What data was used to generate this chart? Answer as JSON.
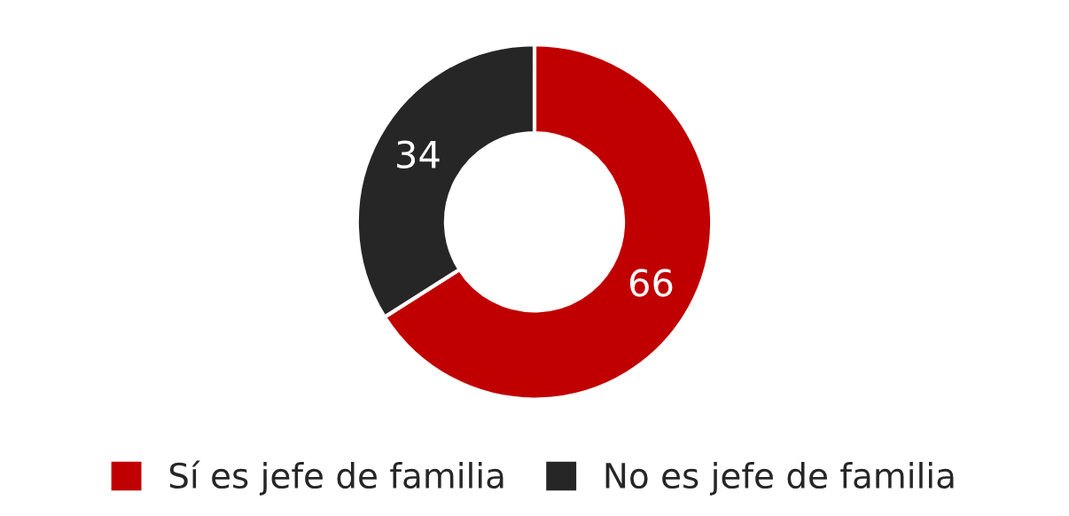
{
  "chart_data": {
    "type": "donut",
    "categories": [
      "Sí es jefe de familia",
      "No es jefe de familia"
    ],
    "values": [
      66,
      34
    ],
    "colors": [
      "#c00000",
      "#262626"
    ],
    "data_labels": true,
    "legend": "bottom"
  }
}
